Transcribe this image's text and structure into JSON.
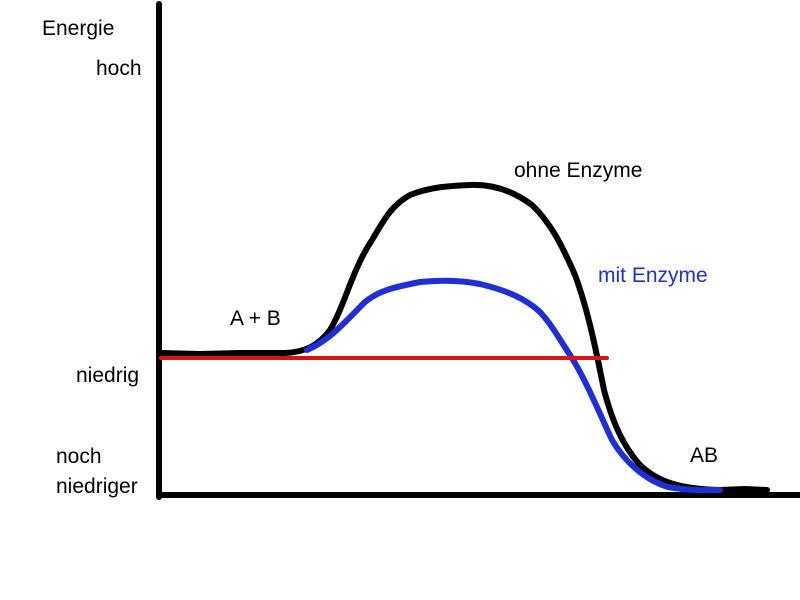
{
  "axis": {
    "y_title": "Energie",
    "level_high": "hoch",
    "level_low": "niedrig",
    "level_lower_line1": "noch",
    "level_lower_line2": "niedriger"
  },
  "labels": {
    "reactants": "A + B",
    "without_enzyme": "ohne Enzyme",
    "with_enzyme": "mit Enzyme",
    "product": "AB"
  },
  "colors": {
    "without_enzyme_curve": "#000000",
    "with_enzyme_curve": "#1f2fd6",
    "reference_line": "#e01010",
    "axes": "#000000"
  }
}
